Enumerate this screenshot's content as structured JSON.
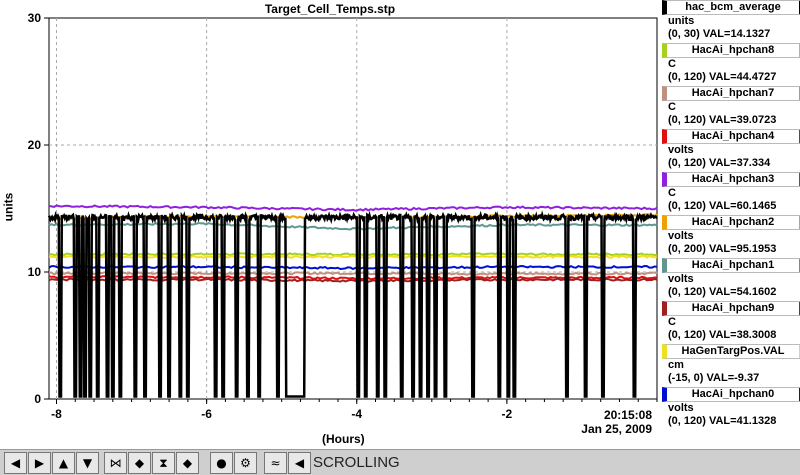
{
  "chart_data": {
    "type": "line",
    "title": "Target_Cell_Temps.stp",
    "xlabel": "(Hours)",
    "ylabel": "units",
    "xlim": [
      -8.1,
      0
    ],
    "ylim": [
      0,
      30
    ],
    "x_ticks": [
      -8,
      -6,
      -4,
      -2
    ],
    "x_tick_labels": [
      "-8",
      "-6",
      "-4",
      "-2"
    ],
    "y_ticks": [
      0,
      10,
      20,
      30
    ],
    "y_tick_labels": [
      "0",
      "10",
      "20",
      "30"
    ],
    "grid": true,
    "timestamp_line1": "20:15:08",
    "timestamp_line2": "Jan 25, 2009",
    "series": [
      {
        "name": "hac_bcm_average",
        "color": "#000000",
        "kind": "bcm",
        "level": 14.3,
        "low": 0.2
      },
      {
        "name": "HacAi_hpchan8",
        "color": "#a8d020",
        "kind": "flat",
        "y": [
          11.4,
          11.4,
          11.4,
          11.4,
          11.4
        ]
      },
      {
        "name": "HacAi_hpchan7",
        "color": "#c09080",
        "kind": "flat",
        "y": [
          9.9,
          9.9,
          9.9,
          9.85,
          9.9
        ]
      },
      {
        "name": "HacAi_hpchan4",
        "color": "#e01010",
        "kind": "flat",
        "y": [
          9.6,
          9.6,
          9.5,
          9.55,
          9.55
        ]
      },
      {
        "name": "HacAi_hpchan3",
        "color": "#9020e0",
        "kind": "flat",
        "y": [
          15.2,
          15.1,
          14.9,
          15.1,
          15.0
        ]
      },
      {
        "name": "HacAi_hpchan2",
        "color": "#f0a000",
        "kind": "flat",
        "y": [
          14.2,
          14.4,
          14.3,
          14.4,
          14.5
        ]
      },
      {
        "name": "HacAi_hpchan1",
        "color": "#609890",
        "kind": "flat",
        "y": [
          13.7,
          13.8,
          13.4,
          13.7,
          13.7
        ]
      },
      {
        "name": "HacAi_hpchan9",
        "color": "#a02020",
        "kind": "flat",
        "y": [
          9.4,
          9.4,
          9.3,
          9.4,
          9.4
        ]
      },
      {
        "name": "HaGenTargPos.VAL",
        "color": "#f0e020",
        "kind": "flat",
        "y": [
          11.2,
          11.2,
          11.2,
          11.2,
          11.2
        ]
      },
      {
        "name": "HacAi_hpchan0",
        "color": "#0010d0",
        "kind": "flat",
        "y": [
          10.4,
          10.4,
          10.3,
          10.4,
          10.4
        ]
      }
    ]
  },
  "legend": [
    {
      "name": "hac_bcm_average",
      "unit": "units",
      "range": "(0, 30) VAL=14.1327",
      "color": "#000000"
    },
    {
      "name": "HacAi_hpchan8",
      "unit": "C",
      "range": "(0, 120) VAL=44.4727",
      "color": "#a8d020"
    },
    {
      "name": "HacAi_hpchan7",
      "unit": "C",
      "range": "(0, 120) VAL=39.0723",
      "color": "#c09080"
    },
    {
      "name": "HacAi_hpchan4",
      "unit": "volts",
      "range": "(0, 120) VAL=37.334",
      "color": "#e01010"
    },
    {
      "name": "HacAi_hpchan3",
      "unit": "C",
      "range": "(0, 120) VAL=60.1465",
      "color": "#9020e0"
    },
    {
      "name": "HacAi_hpchan2",
      "unit": "volts",
      "range": "(0, 200) VAL=95.1953",
      "color": "#f0a000"
    },
    {
      "name": "HacAi_hpchan1",
      "unit": "volts",
      "range": "(0, 120) VAL=54.1602",
      "color": "#609890"
    },
    {
      "name": "HacAi_hpchan9",
      "unit": "C",
      "range": "(0, 120) VAL=38.3008",
      "color": "#a02020"
    },
    {
      "name": "HaGenTargPos.VAL",
      "unit": "cm",
      "range": "(-15, 0) VAL=-9.37",
      "color": "#f0e020"
    },
    {
      "name": "HacAi_hpchan0",
      "unit": "volts",
      "range": "(0, 120) VAL=41.1328",
      "color": "#0010d0"
    }
  ],
  "toolbar": {
    "buttons": [
      {
        "name": "scroll-left-button",
        "glyph": "◀"
      },
      {
        "name": "scroll-right-button",
        "glyph": "▶"
      },
      {
        "name": "scroll-up-button",
        "glyph": "▲"
      },
      {
        "name": "scroll-down-button",
        "glyph": "▼"
      },
      {
        "name": "zoom-in-x-button",
        "glyph": "⋈"
      },
      {
        "name": "zoom-out-x-button",
        "glyph": "◆"
      },
      {
        "name": "zoom-in-y-button",
        "glyph": "⧗"
      },
      {
        "name": "zoom-out-y-button",
        "glyph": "◆"
      },
      {
        "name": "record-button",
        "glyph": "●"
      },
      {
        "name": "settings-button",
        "glyph": "⚙"
      },
      {
        "name": "autoscale-button",
        "glyph": "≈"
      },
      {
        "name": "scroll-mode-button",
        "glyph": "◀"
      }
    ],
    "status": "SCROLLING"
  }
}
